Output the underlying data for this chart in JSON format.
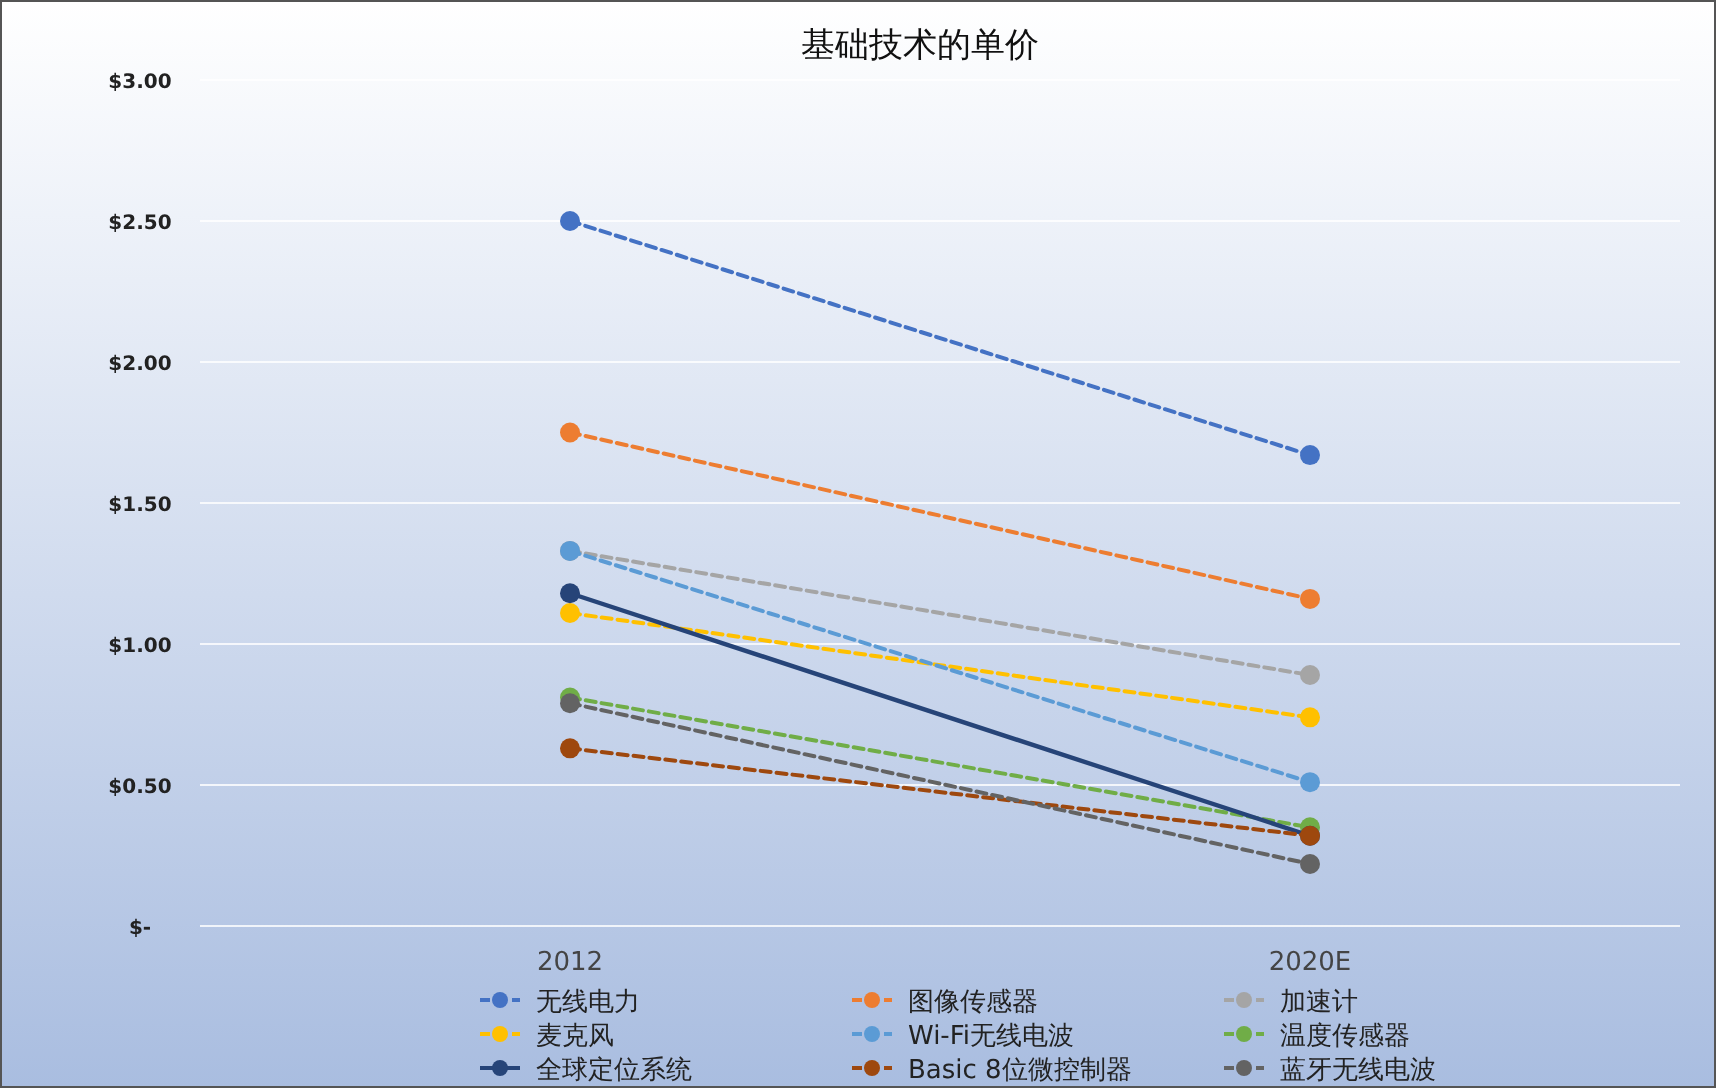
{
  "chart_data": {
    "type": "line",
    "title": "基础技术的单价",
    "categories": [
      "2012",
      "2020E"
    ],
    "series": [
      {
        "name": "无线电力",
        "color": "#4472c4",
        "line_style": "dashed",
        "values": [
          2.5,
          1.67
        ]
      },
      {
        "name": "图像传感器",
        "color": "#ed7d31",
        "line_style": "dashed",
        "values": [
          1.75,
          1.16
        ]
      },
      {
        "name": "加速计",
        "color": "#a5a5a5",
        "line_style": "dashed",
        "values": [
          1.33,
          0.89
        ]
      },
      {
        "name": "麦克风",
        "color": "#ffc000",
        "line_style": "dashed",
        "values": [
          1.11,
          0.74
        ]
      },
      {
        "name": "Wi-Fi无线电波",
        "color": "#5b9bd5",
        "line_style": "dashed",
        "values": [
          1.33,
          0.51
        ]
      },
      {
        "name": "温度传感器",
        "color": "#70ad47",
        "line_style": "dashed",
        "values": [
          0.81,
          0.35
        ]
      },
      {
        "name": "全球定位系统",
        "color": "#264478",
        "line_style": "solid",
        "values": [
          1.18,
          0.32
        ]
      },
      {
        "name": "Basic 8位微控制器",
        "color": "#9e480e",
        "line_style": "dashed",
        "values": [
          0.63,
          0.32
        ]
      },
      {
        "name": "蓝牙无线电波",
        "color": "#636363",
        "line_style": "dashed",
        "values": [
          0.79,
          0.22
        ]
      }
    ],
    "ylim": [
      0,
      3
    ],
    "yticks": [
      {
        "value": 0,
        "label": "$-"
      },
      {
        "value": 0.5,
        "label": "$0.50"
      },
      {
        "value": 1,
        "label": "$1.00"
      },
      {
        "value": 1.5,
        "label": "$1.50"
      },
      {
        "value": 2,
        "label": "$2.00"
      },
      {
        "value": 2.5,
        "label": "$2.50"
      },
      {
        "value": 3,
        "label": "$3.00"
      }
    ],
    "grid": "y",
    "legend": "bottom",
    "marker": "circle"
  }
}
